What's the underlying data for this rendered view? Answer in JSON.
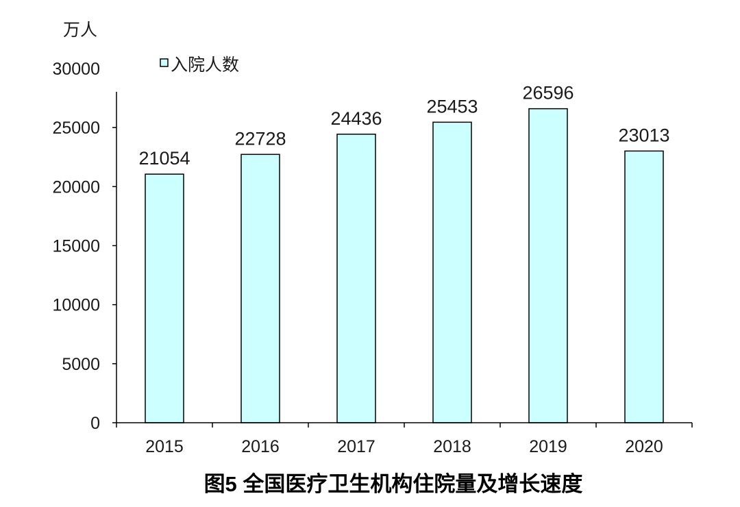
{
  "chart_data": {
    "type": "bar",
    "title": "图5  全国医疗卫生机构住院量及增长速度",
    "unit_label": "万人",
    "categories": [
      "2015",
      "2016",
      "2017",
      "2018",
      "2019",
      "2020"
    ],
    "series": [
      {
        "name": "入院人数",
        "values": [
          21054,
          22728,
          24436,
          25453,
          26596,
          23013
        ]
      }
    ],
    "ylim": [
      0,
      30000
    ],
    "yticks": [
      0,
      5000,
      10000,
      15000,
      20000,
      25000,
      30000
    ],
    "legend_position": "top-left",
    "grid": false,
    "bar_color": "#ccffff",
    "bar_stroke": "#000000"
  }
}
